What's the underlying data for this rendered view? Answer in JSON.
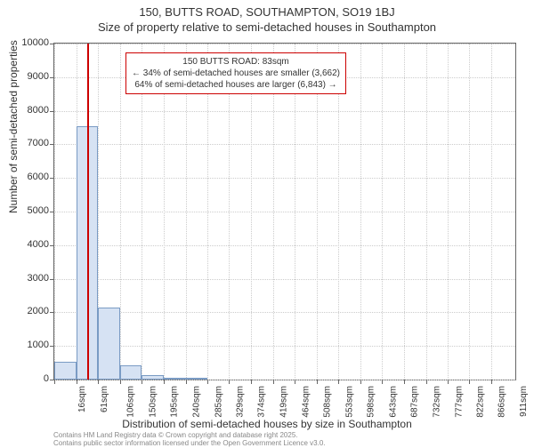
{
  "chart": {
    "type": "histogram",
    "title_line1": "150, BUTTS ROAD, SOUTHAMPTON, SO19 1BJ",
    "title_line2": "Size of property relative to semi-detached houses in Southampton",
    "ylabel": "Number of semi-detached properties",
    "xlabel": "Distribution of semi-detached houses by size in Southampton",
    "ylim": [
      0,
      10000
    ],
    "ytick_step": 1000,
    "yticks": [
      0,
      1000,
      2000,
      3000,
      4000,
      5000,
      6000,
      7000,
      8000,
      9000,
      10000
    ],
    "xtick_positions": [
      16,
      61,
      106,
      150,
      195,
      240,
      285,
      329,
      374,
      419,
      464,
      508,
      553,
      598,
      643,
      687,
      732,
      777,
      822,
      866,
      911
    ],
    "xtick_labels": [
      "16sqm",
      "61sqm",
      "106sqm",
      "150sqm",
      "195sqm",
      "240sqm",
      "285sqm",
      "329sqm",
      "374sqm",
      "419sqm",
      "464sqm",
      "508sqm",
      "553sqm",
      "598sqm",
      "643sqm",
      "687sqm",
      "732sqm",
      "777sqm",
      "822sqm",
      "866sqm",
      "911sqm"
    ],
    "xlim": [
      16,
      960
    ],
    "bars": [
      {
        "x_start": 16,
        "x_end": 61,
        "value": 520
      },
      {
        "x_start": 61,
        "x_end": 106,
        "value": 7550
      },
      {
        "x_start": 106,
        "x_end": 150,
        "value": 2150
      },
      {
        "x_start": 150,
        "x_end": 195,
        "value": 420
      },
      {
        "x_start": 195,
        "x_end": 240,
        "value": 130
      },
      {
        "x_start": 240,
        "x_end": 285,
        "value": 50
      },
      {
        "x_start": 285,
        "x_end": 329,
        "value": 25
      }
    ],
    "bar_fill_color": "#d6e2f3",
    "bar_border_color": "#7a9bc4",
    "marker_x": 83,
    "marker_color": "#cc0000",
    "annotation": {
      "line1": "150 BUTTS ROAD: 83sqm",
      "line2": "← 34% of semi-detached houses are smaller (3,662)",
      "line3": "64% of semi-detached houses are larger (6,843) →"
    },
    "background_color": "#ffffff",
    "grid_color": "#cccccc",
    "axis_color": "#666666",
    "text_color": "#333333",
    "title_fontsize": 13,
    "label_fontsize": 12,
    "tick_fontsize": 11,
    "annotation_fontsize": 10
  },
  "footer": {
    "line1": "Contains HM Land Registry data © Crown copyright and database right 2025.",
    "line2": "Contains public sector information licensed under the Open Government Licence v3.0."
  }
}
